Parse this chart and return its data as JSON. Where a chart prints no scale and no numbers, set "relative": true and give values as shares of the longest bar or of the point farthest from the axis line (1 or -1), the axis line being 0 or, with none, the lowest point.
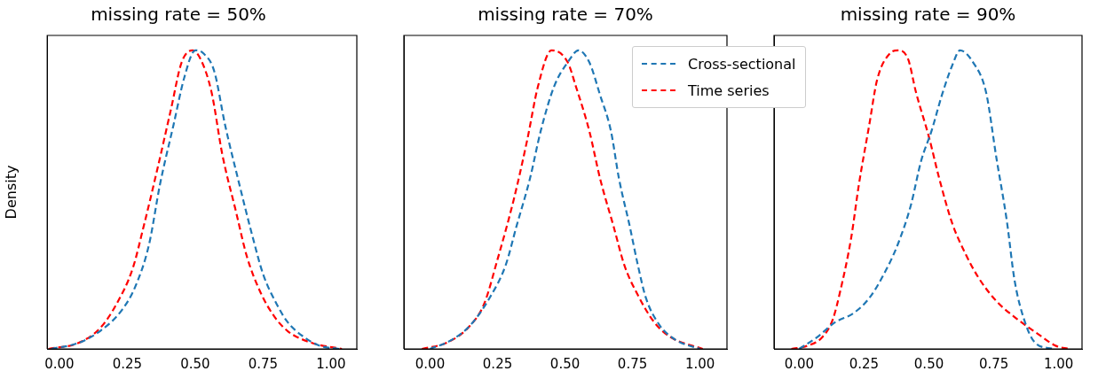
{
  "chart_data": [
    {
      "type": "line",
      "title": "missing rate = 50%",
      "ylabel": "Density",
      "relative": true,
      "xlim": [
        -0.045,
        1.095
      ],
      "xticks": [
        {
          "value": 0,
          "label": "0.00"
        },
        {
          "value": 0.25,
          "label": "0.25"
        },
        {
          "value": 0.5,
          "label": "0.50"
        },
        {
          "value": 0.75,
          "label": "0.75"
        },
        {
          "value": 1,
          "label": "1.00"
        }
      ],
      "tick_labels": "x",
      "grid": false,
      "legend": false,
      "line_style": "dashed",
      "marker": "none",
      "series": [
        {
          "color": "#1f77b4",
          "x": [
            -0.03,
            0.07,
            0.15,
            0.23,
            0.28,
            0.33,
            0.37,
            0.42,
            0.46,
            0.5,
            0.53,
            0.57,
            0.61,
            0.66,
            0.71,
            0.75,
            0.8,
            0.84,
            0.9,
            0.96,
            1.03
          ],
          "values": [
            0,
            0.02,
            0.06,
            0.13,
            0.21,
            0.35,
            0.55,
            0.75,
            0.91,
            1.0,
            0.99,
            0.93,
            0.75,
            0.56,
            0.38,
            0.25,
            0.15,
            0.09,
            0.04,
            0.01,
            0
          ]
        },
        {
          "color": "#ff0000",
          "x": [
            -0.04,
            0.07,
            0.15,
            0.21,
            0.27,
            0.31,
            0.36,
            0.41,
            0.45,
            0.49,
            0.52,
            0.56,
            0.6,
            0.65,
            0.69,
            0.74,
            0.79,
            0.84,
            0.93,
            1.04
          ],
          "values": [
            0,
            0.02,
            0.07,
            0.15,
            0.27,
            0.41,
            0.6,
            0.8,
            0.96,
            1.0,
            0.97,
            0.86,
            0.65,
            0.46,
            0.31,
            0.19,
            0.11,
            0.06,
            0.02,
            0
          ]
        }
      ]
    },
    {
      "type": "line",
      "title": "missing rate = 70%",
      "relative": true,
      "xlim": [
        -0.097,
        1.1
      ],
      "xticks": [
        {
          "value": 0,
          "label": "0.00"
        },
        {
          "value": 0.25,
          "label": "0.25"
        },
        {
          "value": 0.5,
          "label": "0.50"
        },
        {
          "value": 0.75,
          "label": "0.75"
        },
        {
          "value": 1,
          "label": "1.00"
        }
      ],
      "tick_labels": "x",
      "grid": false,
      "legend": "top right",
      "line_style": "dashed",
      "marker": "none",
      "series": [
        {
          "name": "Cross-sectional",
          "color": "#1f77b4",
          "x": [
            0,
            0.08,
            0.15,
            0.22,
            0.28,
            0.32,
            0.37,
            0.41,
            0.46,
            0.51,
            0.55,
            0.59,
            0.63,
            0.67,
            0.7,
            0.74,
            0.77,
            0.8,
            0.85,
            0.91,
            1.0
          ],
          "values": [
            0,
            0.03,
            0.08,
            0.17,
            0.28,
            0.41,
            0.57,
            0.73,
            0.88,
            0.96,
            1.0,
            0.96,
            0.85,
            0.73,
            0.57,
            0.41,
            0.28,
            0.17,
            0.08,
            0.03,
            0
          ]
        },
        {
          "name": "Time series",
          "color": "#ff0000",
          "x": [
            -0.03,
            0.06,
            0.14,
            0.2,
            0.25,
            0.31,
            0.36,
            0.4,
            0.45,
            0.51,
            0.54,
            0.59,
            0.63,
            0.68,
            0.72,
            0.77,
            0.83,
            0.89,
            1.01
          ],
          "values": [
            0,
            0.02,
            0.07,
            0.15,
            0.3,
            0.5,
            0.7,
            0.88,
            1.0,
            0.96,
            0.88,
            0.73,
            0.57,
            0.41,
            0.28,
            0.18,
            0.09,
            0.04,
            0
          ]
        }
      ]
    },
    {
      "type": "line",
      "title": "missing rate = 90%",
      "relative": true,
      "xlim": [
        -0.097,
        1.09
      ],
      "xticks": [
        {
          "value": 0,
          "label": "0.00"
        },
        {
          "value": 0.25,
          "label": "0.25"
        },
        {
          "value": 0.5,
          "label": "0.50"
        },
        {
          "value": 0.75,
          "label": "0.75"
        },
        {
          "value": 1,
          "label": "1.00"
        }
      ],
      "tick_labels": "x",
      "grid": false,
      "legend": false,
      "line_style": "dashed",
      "marker": "none",
      "series": [
        {
          "color": "#1f77b4",
          "x": [
            0,
            0.07,
            0.14,
            0.21,
            0.27,
            0.32,
            0.38,
            0.43,
            0.47,
            0.51,
            0.55,
            0.59,
            0.62,
            0.67,
            0.72,
            0.76,
            0.8,
            0.83,
            0.87,
            0.91,
            0.98
          ],
          "values": [
            0,
            0.04,
            0.09,
            0.12,
            0.17,
            0.24,
            0.35,
            0.48,
            0.63,
            0.73,
            0.85,
            0.95,
            1.0,
            0.96,
            0.86,
            0.64,
            0.43,
            0.23,
            0.09,
            0.02,
            0
          ]
        },
        {
          "color": "#ff0000",
          "x": [
            -0.03,
            0.03,
            0.09,
            0.13,
            0.16,
            0.2,
            0.23,
            0.27,
            0.3,
            0.35,
            0.38,
            0.42,
            0.45,
            0.5,
            0.54,
            0.59,
            0.64,
            0.69,
            0.76,
            0.84,
            0.92,
            0.99,
            1.04
          ],
          "values": [
            0,
            0.01,
            0.04,
            0.1,
            0.2,
            0.37,
            0.55,
            0.75,
            0.9,
            0.99,
            1.0,
            0.97,
            0.86,
            0.71,
            0.57,
            0.42,
            0.32,
            0.24,
            0.16,
            0.1,
            0.05,
            0.01,
            0
          ]
        }
      ]
    }
  ]
}
